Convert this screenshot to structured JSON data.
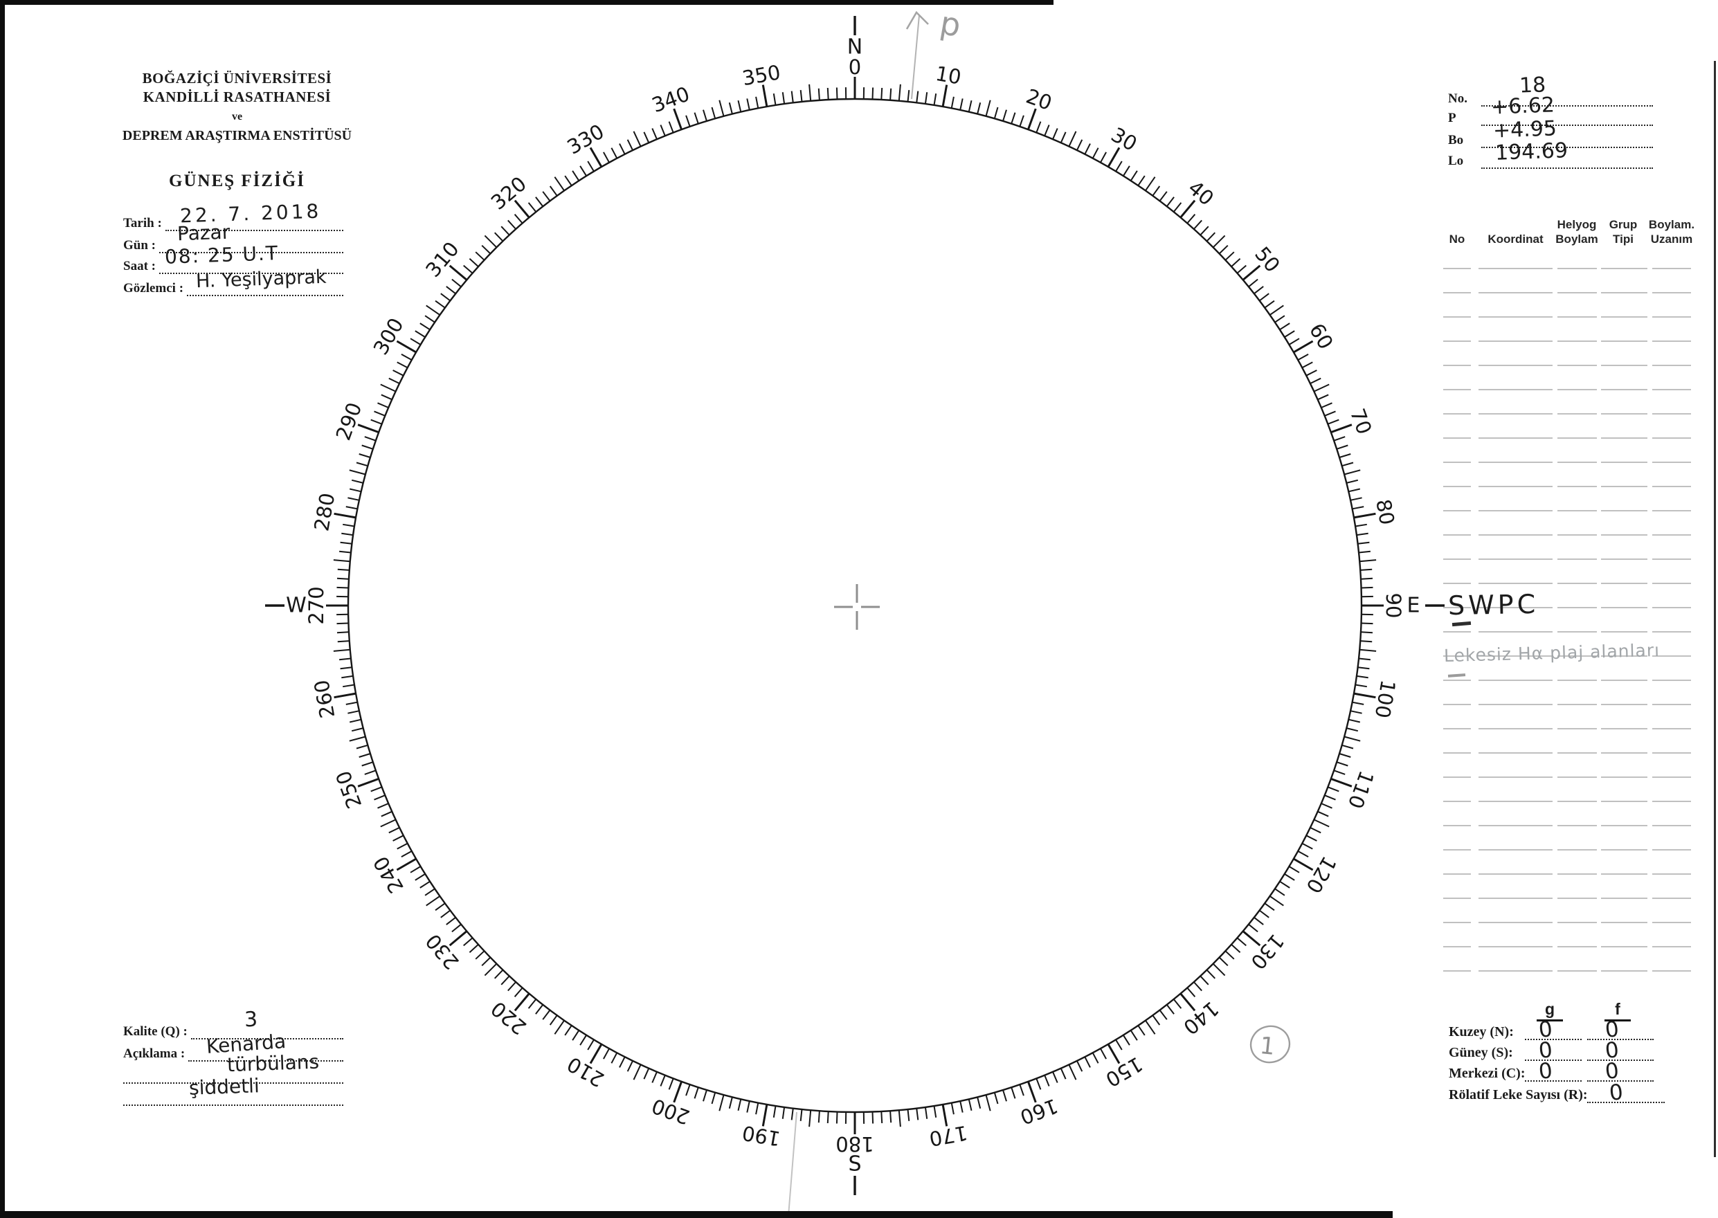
{
  "institution": {
    "line1": "BOĞAZİÇİ ÜNİVERSİTESİ",
    "line2": "KANDİLLİ RASATHANESİ",
    "line3": "ve",
    "line4": "DEPREM ARAŞTIRMA ENSTİTÜSÜ",
    "form_title": "GÜNEŞ FİZİĞİ"
  },
  "observation_fields": [
    {
      "label": "Tarih :",
      "value": "22. 7. 2018"
    },
    {
      "label": "Gün :",
      "value": "Pazar"
    },
    {
      "label": "Saat :",
      "value": "08: 25 U.T"
    },
    {
      "label": "Gözlemci :",
      "value": "H. Yeşilyaprak"
    }
  ],
  "ephemeris_fields": [
    {
      "label": "No.",
      "value": "18"
    },
    {
      "label": "P",
      "value": "+6.62"
    },
    {
      "label": "Bo",
      "value": "+4.95"
    },
    {
      "label": "Lo",
      "value": "194.69"
    }
  ],
  "group_table": {
    "headers": [
      "No",
      "Koordinat",
      "Helyog Boylam",
      "Grup Tipi",
      "Boylam. Uzanım"
    ],
    "empty_row_count": 30,
    "handwritten": {
      "swpc": "SWPC",
      "pencil_note": "Lekesiz Hα plaj alanları"
    }
  },
  "dial": {
    "degree_labels": [
      "0",
      "10",
      "20",
      "30",
      "40",
      "50",
      "60",
      "70",
      "80",
      "90",
      "100",
      "110",
      "120",
      "130",
      "140",
      "150",
      "160",
      "170",
      "180",
      "190",
      "200",
      "210",
      "220",
      "230",
      "240",
      "250",
      "260",
      "270",
      "280",
      "290",
      "300",
      "310",
      "320",
      "330",
      "340",
      "350"
    ],
    "cardinal_points": [
      {
        "letter": "N",
        "deg": 0
      },
      {
        "letter": "E",
        "deg": 90
      },
      {
        "letter": "S",
        "deg": 180
      },
      {
        "letter": "W",
        "deg": 270
      }
    ],
    "pencil_arrow_label": "p",
    "pencil_circled_number": "1"
  },
  "quality": {
    "kalite_label": "Kalite (Q) :",
    "kalite_value": "3",
    "aciklama_label": "Açıklama :",
    "aciklama_line1": "Kenarda",
    "aciklama_line2": "türbülans",
    "aciklama_line3": "şiddetli"
  },
  "spot_counts": {
    "col_g": "g",
    "col_f": "f",
    "rows": [
      {
        "label": "Kuzey (N):",
        "g": "0",
        "f": "0"
      },
      {
        "label": "Güney (S):",
        "g": "0",
        "f": "0"
      },
      {
        "label": "Merkezi (C):",
        "g": "0",
        "f": "0"
      },
      {
        "label": "Rölatif Leke Sayısı (R):",
        "f": "0"
      }
    ]
  }
}
